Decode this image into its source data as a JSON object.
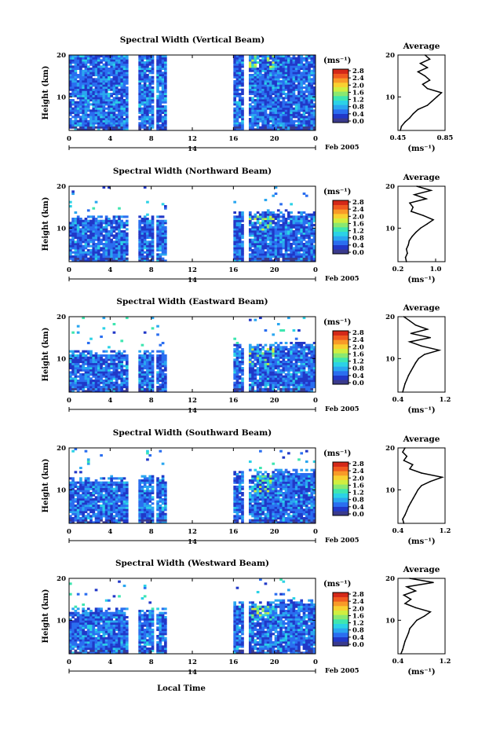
{
  "chart_data": [
    {
      "type": "heatmap",
      "title": "Spectral Width (Vertical Beam)",
      "ylabel": "Height (km)",
      "x_ticks": [
        "0",
        "4",
        "8",
        "12",
        "16",
        "20",
        "0"
      ],
      "date_label": "14",
      "month_label": "Feb 2005",
      "xlim": [
        0,
        24
      ],
      "ylim": [
        2,
        20
      ],
      "y_ticks": [
        "20",
        "10"
      ],
      "colorbar": {
        "unit": "(ms⁻¹)",
        "ticks": [
          "2.8",
          "2.4",
          "2.0",
          "1.6",
          "1.2",
          "0.8",
          "0.4",
          "0.0"
        ]
      },
      "gaps": [
        [
          5.7,
          6.6
        ],
        [
          8.1,
          8.4
        ],
        [
          9.1,
          9.2
        ],
        [
          9.4,
          15.8
        ],
        [
          16.9,
          17.4
        ]
      ],
      "top_by_x": [
        [
          0,
          20
        ],
        [
          24,
          20
        ]
      ],
      "average": {
        "title": "Average",
        "xlabel": "(ms⁻¹)",
        "x_ticks": [
          "0.45",
          "0.85"
        ],
        "xlim": [
          0.45,
          0.85
        ],
        "y_ticks": [
          "20",
          "10"
        ],
        "ylim": [
          2,
          20
        ],
        "height": [
          2,
          3,
          4,
          5,
          6,
          7,
          8,
          9,
          10,
          11,
          12,
          13,
          14,
          15,
          16,
          17,
          18,
          19,
          20
        ],
        "value": [
          0.47,
          0.48,
          0.51,
          0.55,
          0.58,
          0.62,
          0.7,
          0.74,
          0.78,
          0.82,
          0.7,
          0.66,
          0.72,
          0.68,
          0.62,
          0.7,
          0.64,
          0.72,
          0.68
        ]
      }
    },
    {
      "type": "heatmap",
      "title": "Spectral Width (Northward Beam)",
      "ylabel": "Height (km)",
      "x_ticks": [
        "0",
        "4",
        "8",
        "12",
        "16",
        "20",
        "0"
      ],
      "date_label": "14",
      "month_label": "Feb 2005",
      "xlim": [
        0,
        24
      ],
      "ylim": [
        2,
        20
      ],
      "y_ticks": [
        "20",
        "10"
      ],
      "colorbar": {
        "unit": "(ms⁻¹)",
        "ticks": [
          "2.8",
          "2.4",
          "2.0",
          "1.6",
          "1.2",
          "0.8",
          "0.4",
          "0.0"
        ]
      },
      "gaps": [
        [
          5.7,
          6.6
        ],
        [
          8.1,
          8.4
        ],
        [
          9.1,
          9.2
        ],
        [
          9.4,
          15.8
        ],
        [
          16.9,
          17.4
        ]
      ],
      "top_by_x": [
        [
          0,
          12
        ],
        [
          5.7,
          12
        ],
        [
          6.6,
          11.5
        ],
        [
          15.8,
          13
        ],
        [
          24,
          13
        ]
      ],
      "average": {
        "title": "Average",
        "xlabel": "(ms⁻¹)",
        "x_ticks": [
          "0.2",
          "1.0"
        ],
        "xlim": [
          0.2,
          1.2
        ],
        "y_ticks": [
          "20",
          "10"
        ],
        "ylim": [
          2,
          20
        ],
        "height": [
          2,
          3,
          4,
          5,
          6,
          7,
          8,
          9,
          10,
          11,
          12,
          13,
          14,
          15,
          16,
          17,
          18,
          19,
          20
        ],
        "value": [
          0.38,
          0.36,
          0.4,
          0.38,
          0.42,
          0.44,
          0.5,
          0.58,
          0.68,
          0.82,
          0.95,
          0.74,
          0.48,
          0.52,
          0.45,
          0.8,
          0.55,
          0.9,
          0.6
        ]
      }
    },
    {
      "type": "heatmap",
      "title": "Spectral Width (Eastward Beam)",
      "ylabel": "Height (km)",
      "x_ticks": [
        "0",
        "4",
        "8",
        "12",
        "16",
        "20",
        "0"
      ],
      "date_label": "14",
      "month_label": "Feb 2005",
      "xlim": [
        0,
        24
      ],
      "ylim": [
        2,
        20
      ],
      "y_ticks": [
        "20",
        "10"
      ],
      "colorbar": {
        "unit": "(ms⁻¹)",
        "ticks": [
          "2.8",
          "2.4",
          "2.0",
          "1.6",
          "1.2",
          "0.8",
          "0.4",
          "0.0"
        ]
      },
      "gaps": [
        [
          5.7,
          6.6
        ],
        [
          8.1,
          8.4
        ],
        [
          9.1,
          9.2
        ],
        [
          9.4,
          15.8
        ],
        [
          16.9,
          17.4
        ]
      ],
      "top_by_x": [
        [
          0,
          11
        ],
        [
          5.7,
          11
        ],
        [
          6.6,
          10.5
        ],
        [
          15.8,
          12
        ],
        [
          24,
          13
        ]
      ],
      "average": {
        "title": "Average",
        "xlabel": "(ms⁻¹)",
        "x_ticks": [
          "0.4",
          "1.2"
        ],
        "xlim": [
          0.4,
          1.2
        ],
        "y_ticks": [
          "20",
          "10"
        ],
        "ylim": [
          2,
          20
        ],
        "height": [
          2,
          3,
          4,
          5,
          6,
          7,
          8,
          9,
          10,
          11,
          12,
          13,
          14,
          15,
          16,
          17,
          18,
          19,
          20
        ],
        "value": [
          0.48,
          0.5,
          0.52,
          0.55,
          0.58,
          0.62,
          0.66,
          0.7,
          0.75,
          0.85,
          1.1,
          0.8,
          0.6,
          0.95,
          0.62,
          0.9,
          0.7,
          0.6,
          0.5
        ]
      }
    },
    {
      "type": "heatmap",
      "title": "Spectral Width (Southward Beam)",
      "ylabel": "Height (km)",
      "x_ticks": [
        "0",
        "4",
        "8",
        "12",
        "16",
        "20",
        "0"
      ],
      "date_label": "14",
      "month_label": "Feb 2005",
      "xlim": [
        0,
        24
      ],
      "ylim": [
        2,
        20
      ],
      "y_ticks": [
        "20",
        "10"
      ],
      "colorbar": {
        "unit": "(ms⁻¹)",
        "ticks": [
          "2.8",
          "2.4",
          "2.0",
          "1.6",
          "1.2",
          "0.8",
          "0.4",
          "0.0"
        ]
      },
      "gaps": [
        [
          5.7,
          6.6
        ],
        [
          8.1,
          8.4
        ],
        [
          9.1,
          9.2
        ],
        [
          9.4,
          15.8
        ],
        [
          16.9,
          17.4
        ]
      ],
      "top_by_x": [
        [
          0,
          12
        ],
        [
          5.7,
          12
        ],
        [
          6.6,
          12
        ],
        [
          15.8,
          13
        ],
        [
          24,
          14
        ]
      ],
      "average": {
        "title": "Average",
        "xlabel": "(ms⁻¹)",
        "x_ticks": [
          "0.4",
          "1.2"
        ],
        "xlim": [
          0.4,
          1.2
        ],
        "y_ticks": [
          "20",
          "10"
        ],
        "ylim": [
          2,
          20
        ],
        "height": [
          2,
          3,
          4,
          5,
          6,
          7,
          8,
          9,
          10,
          11,
          12,
          13,
          14,
          15,
          16,
          17,
          18,
          19,
          20
        ],
        "value": [
          0.5,
          0.48,
          0.52,
          0.55,
          0.58,
          0.62,
          0.66,
          0.7,
          0.74,
          0.8,
          0.95,
          1.15,
          0.8,
          0.6,
          0.65,
          0.5,
          0.55,
          0.48,
          0.52
        ]
      }
    },
    {
      "type": "heatmap",
      "title": "Spectral Width (Westward Beam)",
      "ylabel": "Height (km)",
      "x_ticks": [
        "0",
        "4",
        "8",
        "12",
        "16",
        "20",
        "0"
      ],
      "date_label": "14",
      "month_label": "Feb 2005",
      "xlim": [
        0,
        24
      ],
      "ylim": [
        2,
        20
      ],
      "y_ticks": [
        "20",
        "10"
      ],
      "colorbar": {
        "unit": "(ms⁻¹)",
        "ticks": [
          "2.8",
          "2.4",
          "2.0",
          "1.6",
          "1.2",
          "0.8",
          "0.4",
          "0.0"
        ]
      },
      "gaps": [
        [
          5.7,
          6.6
        ],
        [
          8.1,
          8.4
        ],
        [
          9.1,
          9.2
        ],
        [
          9.4,
          15.8
        ],
        [
          16.9,
          17.4
        ]
      ],
      "top_by_x": [
        [
          0,
          12
        ],
        [
          5.7,
          12
        ],
        [
          6.6,
          11
        ],
        [
          15.8,
          13
        ],
        [
          24,
          14
        ]
      ],
      "average": {
        "title": "Average",
        "xlabel": "(ms⁻¹)",
        "x_ticks": [
          "0.4",
          "1.2"
        ],
        "xlim": [
          0.4,
          1.2
        ],
        "y_ticks": [
          "20",
          "10"
        ],
        "ylim": [
          2,
          20
        ],
        "height": [
          2,
          3,
          4,
          5,
          6,
          7,
          8,
          9,
          10,
          11,
          12,
          13,
          14,
          15,
          16,
          17,
          18,
          19,
          20
        ],
        "value": [
          0.45,
          0.48,
          0.5,
          0.52,
          0.55,
          0.58,
          0.6,
          0.66,
          0.72,
          0.85,
          0.95,
          0.7,
          0.52,
          0.62,
          0.5,
          0.7,
          0.55,
          1.0,
          0.6
        ]
      }
    }
  ],
  "bottom_axis_label": "Local Time",
  "colors": {
    "colormap": [
      "#3a3a8c",
      "#2138c8",
      "#2a6ef0",
      "#2aa6f0",
      "#2bd2e6",
      "#3ee6b0",
      "#8ae870",
      "#d0ee40",
      "#f8d030",
      "#f89a28",
      "#f05a20",
      "#d42818"
    ],
    "background": "#ffffff"
  }
}
